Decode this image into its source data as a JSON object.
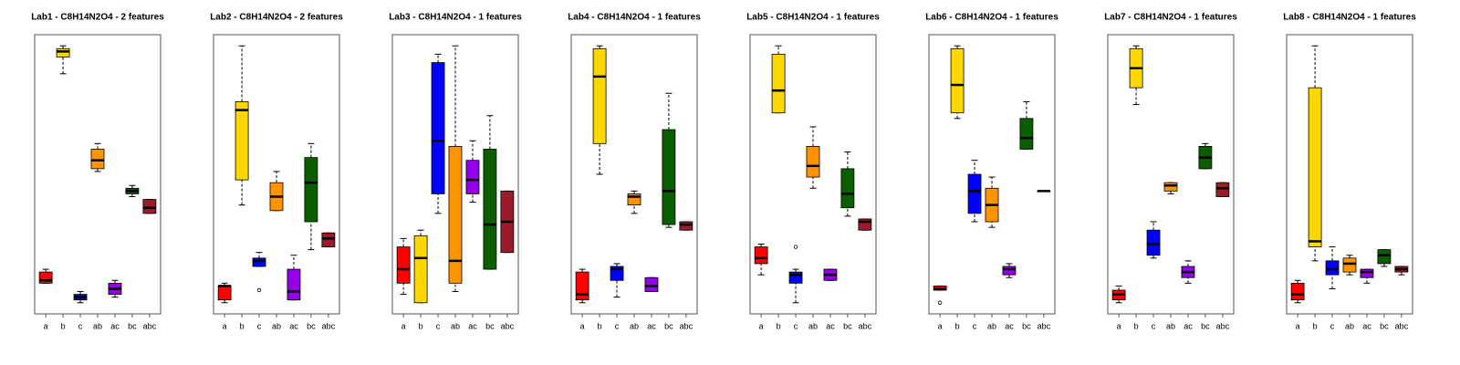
{
  "chart_data": [
    {
      "type": "box",
      "title": "Lab1 - C8H14N2O4 - 2 features",
      "ylim": [
        0,
        100
      ],
      "categories": [
        "a",
        "b",
        "c",
        "ab",
        "ac",
        "bc",
        "abc"
      ],
      "colors": [
        "#ff0000",
        "#ffd700",
        "#0000ff",
        "#ff9400",
        "#9400e8",
        "#0b5e00",
        "#9b1b2b"
      ],
      "stats": [
        [
          11,
          11,
          12,
          15,
          16
        ],
        [
          86,
          92,
          94,
          95,
          96
        ],
        [
          4,
          5,
          6,
          7,
          8
        ],
        [
          51,
          52,
          55,
          59,
          61
        ],
        [
          6,
          7,
          9,
          11,
          12
        ],
        [
          42,
          43,
          44,
          45,
          46
        ],
        [
          36,
          36,
          38,
          41,
          41
        ]
      ],
      "outliers": [
        [],
        [],
        [],
        [],
        [],
        [],
        []
      ]
    },
    {
      "type": "box",
      "title": "Lab2 - C8H14N2O4 - 2 features",
      "ylim": [
        0,
        100
      ],
      "categories": [
        "a",
        "b",
        "c",
        "ab",
        "ac",
        "bc",
        "abc"
      ],
      "colors": [
        "#ff0000",
        "#ffd700",
        "#0000ff",
        "#ff9400",
        "#9400e8",
        "#0b5e00",
        "#9b1b2b"
      ],
      "stats": [
        [
          4,
          5,
          10,
          10,
          11
        ],
        [
          39,
          48,
          73,
          76,
          96
        ],
        [
          17,
          17,
          19,
          20,
          22
        ],
        [
          37,
          37,
          42,
          47,
          51
        ],
        [
          5,
          5,
          8,
          16,
          21
        ],
        [
          23,
          33,
          47,
          56,
          61
        ],
        [
          24,
          24,
          27,
          29,
          29
        ]
      ],
      "outliers": [
        [],
        [],
        [
          8.5
        ],
        [],
        [],
        [],
        []
      ]
    },
    {
      "type": "box",
      "title": "Lab3 - C8H14N2O4 - 1 features",
      "ylim": [
        0,
        100
      ],
      "categories": [
        "a",
        "b",
        "c",
        "ab",
        "ac",
        "bc",
        "abc"
      ],
      "colors": [
        "#ff0000",
        "#ffd700",
        "#0000ff",
        "#ff9400",
        "#9400e8",
        "#0b5e00",
        "#9b1b2b"
      ],
      "stats": [
        [
          7,
          11,
          16,
          24,
          27
        ],
        [
          4,
          4,
          20,
          28,
          30
        ],
        [
          36,
          43,
          62,
          90,
          93
        ],
        [
          8,
          11,
          19,
          60,
          96
        ],
        [
          40,
          43,
          48,
          55,
          62
        ],
        [
          16,
          16,
          32,
          59,
          71
        ],
        [
          22,
          22,
          33,
          44,
          44
        ]
      ],
      "outliers": [
        [],
        [],
        [],
        [],
        [],
        [],
        []
      ]
    },
    {
      "type": "box",
      "title": "Lab4 - C8H14N2O4 - 1 features",
      "ylim": [
        0,
        100
      ],
      "categories": [
        "a",
        "b",
        "c",
        "ab",
        "ac",
        "bc",
        "abc"
      ],
      "colors": [
        "#ff0000",
        "#ffd700",
        "#0000ff",
        "#ff9400",
        "#9400e8",
        "#0b5e00",
        "#9b1b2b"
      ],
      "stats": [
        [
          4,
          5,
          7,
          15,
          16
        ],
        [
          50,
          61,
          85,
          95,
          96
        ],
        [
          6,
          12,
          16,
          17,
          18
        ],
        [
          36,
          39,
          42,
          43,
          44
        ],
        [
          8,
          8,
          10,
          13,
          13
        ],
        [
          31,
          32,
          44,
          66,
          79
        ],
        [
          30,
          30,
          32,
          33,
          33
        ]
      ],
      "outliers": [
        [],
        [],
        [],
        [],
        [],
        [],
        []
      ]
    },
    {
      "type": "box",
      "title": "Lab5 - C8H14N2O4 - 1 features",
      "ylim": [
        0,
        100
      ],
      "categories": [
        "a",
        "b",
        "c",
        "ab",
        "ac",
        "bc",
        "abc"
      ],
      "colors": [
        "#ff0000",
        "#ffd700",
        "#0000ff",
        "#ff9400",
        "#9400e8",
        "#0b5e00",
        "#9b1b2b"
      ],
      "stats": [
        [
          14,
          18,
          20,
          24,
          25
        ],
        [
          72,
          72,
          80,
          93,
          96
        ],
        [
          4,
          11,
          14,
          15,
          16
        ],
        [
          45,
          49,
          53,
          60,
          67
        ],
        [
          12,
          12,
          14,
          16,
          16
        ],
        [
          35,
          38,
          43,
          52,
          58
        ],
        [
          30,
          30,
          33,
          34,
          34
        ]
      ],
      "outliers": [
        [],
        [],
        [
          24
        ],
        [],
        [],
        [],
        []
      ]
    },
    {
      "type": "box",
      "title": "Lab6 - C8H14N2O4 - 1 features",
      "ylim": [
        0,
        100
      ],
      "categories": [
        "a",
        "b",
        "c",
        "ab",
        "ac",
        "bc",
        "abc"
      ],
      "colors": [
        "#ff0000",
        "#ffd700",
        "#0000ff",
        "#ff9400",
        "#9400e8",
        "#0b5e00",
        "#9b1b2b"
      ],
      "stats": [
        [
          8.5,
          8.5,
          9,
          10,
          10
        ],
        [
          70,
          72,
          82,
          95,
          96
        ],
        [
          33,
          36,
          44,
          50,
          55
        ],
        [
          31,
          33,
          39,
          45,
          49
        ],
        [
          13,
          14,
          16,
          17,
          18
        ],
        [
          59,
          59,
          63,
          70,
          76
        ],
        [
          44,
          44,
          44,
          44,
          44
        ]
      ],
      "outliers": [
        [
          4
        ],
        [],
        [],
        [],
        [],
        [],
        []
      ]
    },
    {
      "type": "box",
      "title": "Lab7 - C8H14N2O4 - 1 features",
      "ylim": [
        0,
        100
      ],
      "categories": [
        "a",
        "b",
        "c",
        "ab",
        "ac",
        "bc",
        "abc"
      ],
      "colors": [
        "#ff0000",
        "#ffd700",
        "#0000ff",
        "#ff9400",
        "#9400e8",
        "#0b5e00",
        "#9b1b2b"
      ],
      "stats": [
        [
          4,
          5,
          7,
          8.5,
          10
        ],
        [
          75,
          81,
          88,
          95,
          96
        ],
        [
          20,
          21,
          25,
          30,
          33
        ],
        [
          43,
          44,
          46,
          47,
          47
        ],
        [
          11,
          13,
          15,
          17,
          19
        ],
        [
          52,
          52,
          56,
          60,
          61
        ],
        [
          42,
          42,
          45,
          47,
          47
        ]
      ],
      "outliers": [
        [],
        [],
        [],
        [],
        [],
        [],
        []
      ]
    },
    {
      "type": "box",
      "title": "Lab8 - C8H14N2O4 - 1 features",
      "ylim": [
        0,
        100
      ],
      "categories": [
        "a",
        "b",
        "c",
        "ab",
        "ac",
        "bc",
        "abc"
      ],
      "colors": [
        "#ff0000",
        "#ffd700",
        "#0000ff",
        "#ff9400",
        "#9400e8",
        "#0b5e00",
        "#9b1b2b"
      ],
      "stats": [
        [
          4,
          5,
          7,
          11,
          12
        ],
        [
          19,
          24,
          26,
          81,
          96
        ],
        [
          9,
          14,
          16,
          19,
          24
        ],
        [
          14,
          15,
          18,
          20,
          21
        ],
        [
          11,
          13,
          15,
          16,
          16
        ],
        [
          17,
          18,
          21,
          23,
          23
        ],
        [
          14,
          15,
          16,
          17,
          17
        ]
      ],
      "outliers": [
        [],
        [],
        [],
        [],
        [],
        [],
        []
      ]
    }
  ]
}
